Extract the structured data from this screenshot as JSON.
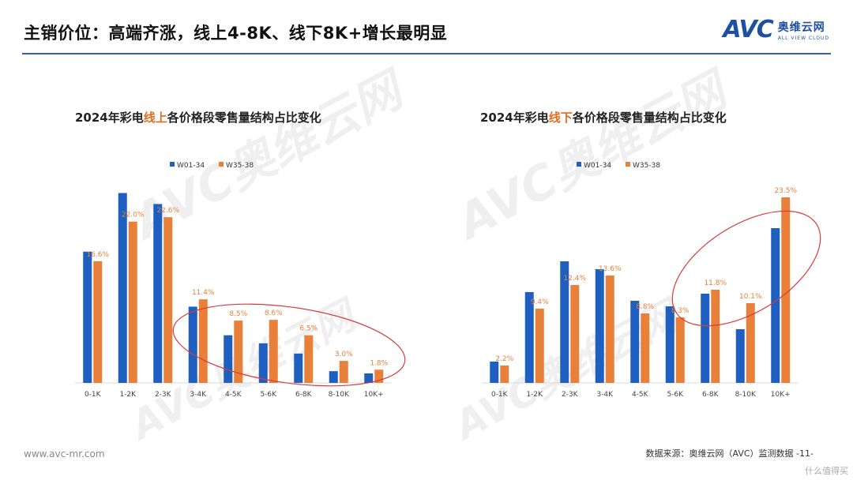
{
  "page": {
    "title": "主销价位：高端齐涨，线上4-8K、线下8K+增长最明显",
    "brand_mark": "AVC",
    "brand_cn": "奥维云网",
    "brand_en": "ALL VIEW CLOUD",
    "footer_url": "www.avc-mr.com",
    "footer_source": "数据来源：奥维云网（AVC）监测数据    -11-",
    "watermark_text": "AVC奥维云网",
    "corner_watermark": "什么值得买"
  },
  "colors": {
    "w01_34": "#1f5fbf",
    "w35_38": "#e8803a",
    "highlight": "#e46c1f",
    "ellipse": "#d93b3b"
  },
  "chart_data": [
    {
      "type": "bar",
      "title_prefix": "2024年彩电",
      "title_highlight": "线上",
      "title_suffix": "各价格段零售量结构占比变化",
      "categories": [
        "0-1K",
        "1-2K",
        "2-3K",
        "3-4K",
        "4-5K",
        "5-6K",
        "6-8K",
        "8-10K",
        "10K+"
      ],
      "series": [
        {
          "name": "W01-34",
          "values": [
            17.9,
            25.9,
            24.4,
            10.4,
            6.5,
            5.4,
            4.0,
            1.6,
            1.3
          ]
        },
        {
          "name": "W35-38",
          "values": [
            16.6,
            22.0,
            22.6,
            11.4,
            8.5,
            8.6,
            6.5,
            3.0,
            1.8
          ]
        }
      ],
      "data_labels": [
        "16.6%",
        "22.0%",
        "22.6%",
        "11.4%",
        "8.5%",
        "8.6%",
        "6.5%",
        "3.0%",
        "1.8%"
      ],
      "ylim": [
        0,
        28
      ],
      "legend": "top-center",
      "annotation": "ellipse around 3-4K to 10K+"
    },
    {
      "type": "bar",
      "title_prefix": "2024年彩电",
      "title_highlight": "线下",
      "title_suffix": "各价格段零售量结构占比变化",
      "categories": [
        "0-1K",
        "1-2K",
        "2-3K",
        "3-4K",
        "4-5K",
        "5-6K",
        "6-8K",
        "8-10K",
        "10K+"
      ],
      "series": [
        {
          "name": "W01-34",
          "values": [
            2.7,
            11.5,
            15.4,
            14.4,
            10.4,
            9.7,
            11.3,
            6.8,
            19.6
          ]
        },
        {
          "name": "W35-38",
          "values": [
            2.2,
            9.4,
            12.4,
            13.6,
            8.8,
            8.3,
            11.8,
            10.1,
            23.5
          ]
        }
      ],
      "data_labels": [
        "2.2%",
        "9.4%",
        "12.4%",
        "13.6%",
        "8.8%",
        "8.3%",
        "11.8%",
        "10.1%",
        "23.5%"
      ],
      "ylim": [
        0,
        26
      ],
      "legend": "top-center",
      "annotation": "ellipse around 6-8K to 10K+"
    }
  ]
}
